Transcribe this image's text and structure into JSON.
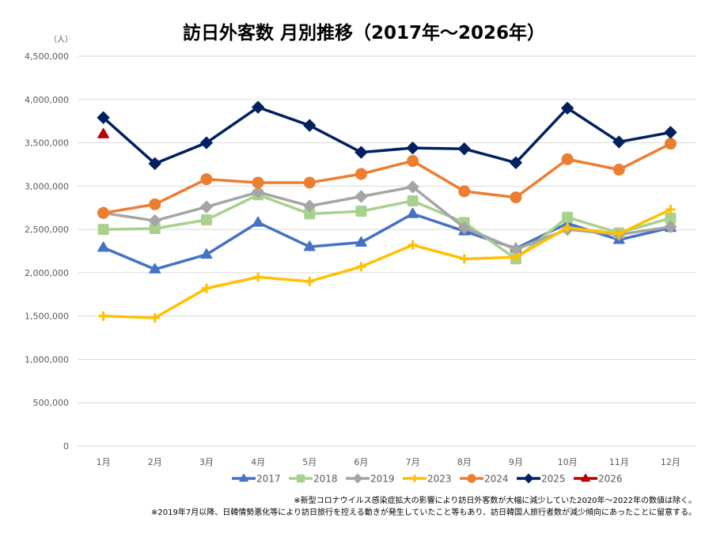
{
  "chart_data": {
    "type": "line",
    "title": "訪日外客数 月別推移（2017年～2026年）",
    "ylabel": "（人）",
    "xlabel": "",
    "ylim": [
      0,
      4500000
    ],
    "yticks": [
      0,
      500000,
      1000000,
      1500000,
      2000000,
      2500000,
      3000000,
      3500000,
      4000000,
      4500000
    ],
    "ytick_labels": [
      "0",
      "500,000",
      "1,000,000",
      "1,500,000",
      "2,000,000",
      "2,500,000",
      "3,000,000",
      "3,500,000",
      "4,000,000",
      "4,500,000"
    ],
    "grid": true,
    "legend_position": "bottom",
    "categories": [
      "1月",
      "2月",
      "3月",
      "4月",
      "5月",
      "6月",
      "7月",
      "8月",
      "9月",
      "10月",
      "11月",
      "12月"
    ],
    "series": [
      {
        "name": "2017",
        "color": "#4472C4",
        "marker": "triangle",
        "values": [
          2290000,
          2040000,
          2210000,
          2580000,
          2300000,
          2350000,
          2680000,
          2480000,
          2280000,
          2570000,
          2380000,
          2520000
        ]
      },
      {
        "name": "2018",
        "color": "#A9D18E",
        "marker": "square",
        "values": [
          2500000,
          2510000,
          2610000,
          2900000,
          2680000,
          2710000,
          2830000,
          2580000,
          2160000,
          2640000,
          2460000,
          2630000
        ]
      },
      {
        "name": "2019",
        "color": "#A5A5A5",
        "marker": "diamond",
        "values": [
          2690000,
          2600000,
          2760000,
          2930000,
          2770000,
          2880000,
          2990000,
          2520000,
          2270000,
          2500000,
          2440000,
          2530000
        ]
      },
      {
        "name": "2023",
        "color": "#FFC000",
        "marker": "plus",
        "values": [
          1500000,
          1480000,
          1820000,
          1950000,
          1900000,
          2070000,
          2320000,
          2160000,
          2180000,
          2520000,
          2450000,
          2730000
        ]
      },
      {
        "name": "2024",
        "color": "#ED7D31",
        "marker": "circle",
        "values": [
          2690000,
          2790000,
          3080000,
          3040000,
          3040000,
          3140000,
          3290000,
          2940000,
          2870000,
          3310000,
          3190000,
          3490000
        ]
      },
      {
        "name": "2025",
        "color": "#002060",
        "marker": "diamond",
        "values": [
          3790000,
          3260000,
          3500000,
          3910000,
          3700000,
          3390000,
          3440000,
          3430000,
          3270000,
          3900000,
          3510000,
          3620000
        ]
      },
      {
        "name": "2026",
        "color": "#C00000",
        "marker": "triangle",
        "values": [
          3600000,
          null,
          null,
          null,
          null,
          null,
          null,
          null,
          null,
          null,
          null,
          null
        ]
      }
    ]
  },
  "notes": [
    "※新型コロナウイルス感染症拡大の影響により訪日外客数が大幅に減少していた2020年～2022年の数値は除く。",
    "※2019年7月以降、日韓情勢悪化等により訪日旅行を控える動きが発生していたこと等もあり、訪日韓国人旅行者数が減少傾向にあったことに留意する。"
  ]
}
